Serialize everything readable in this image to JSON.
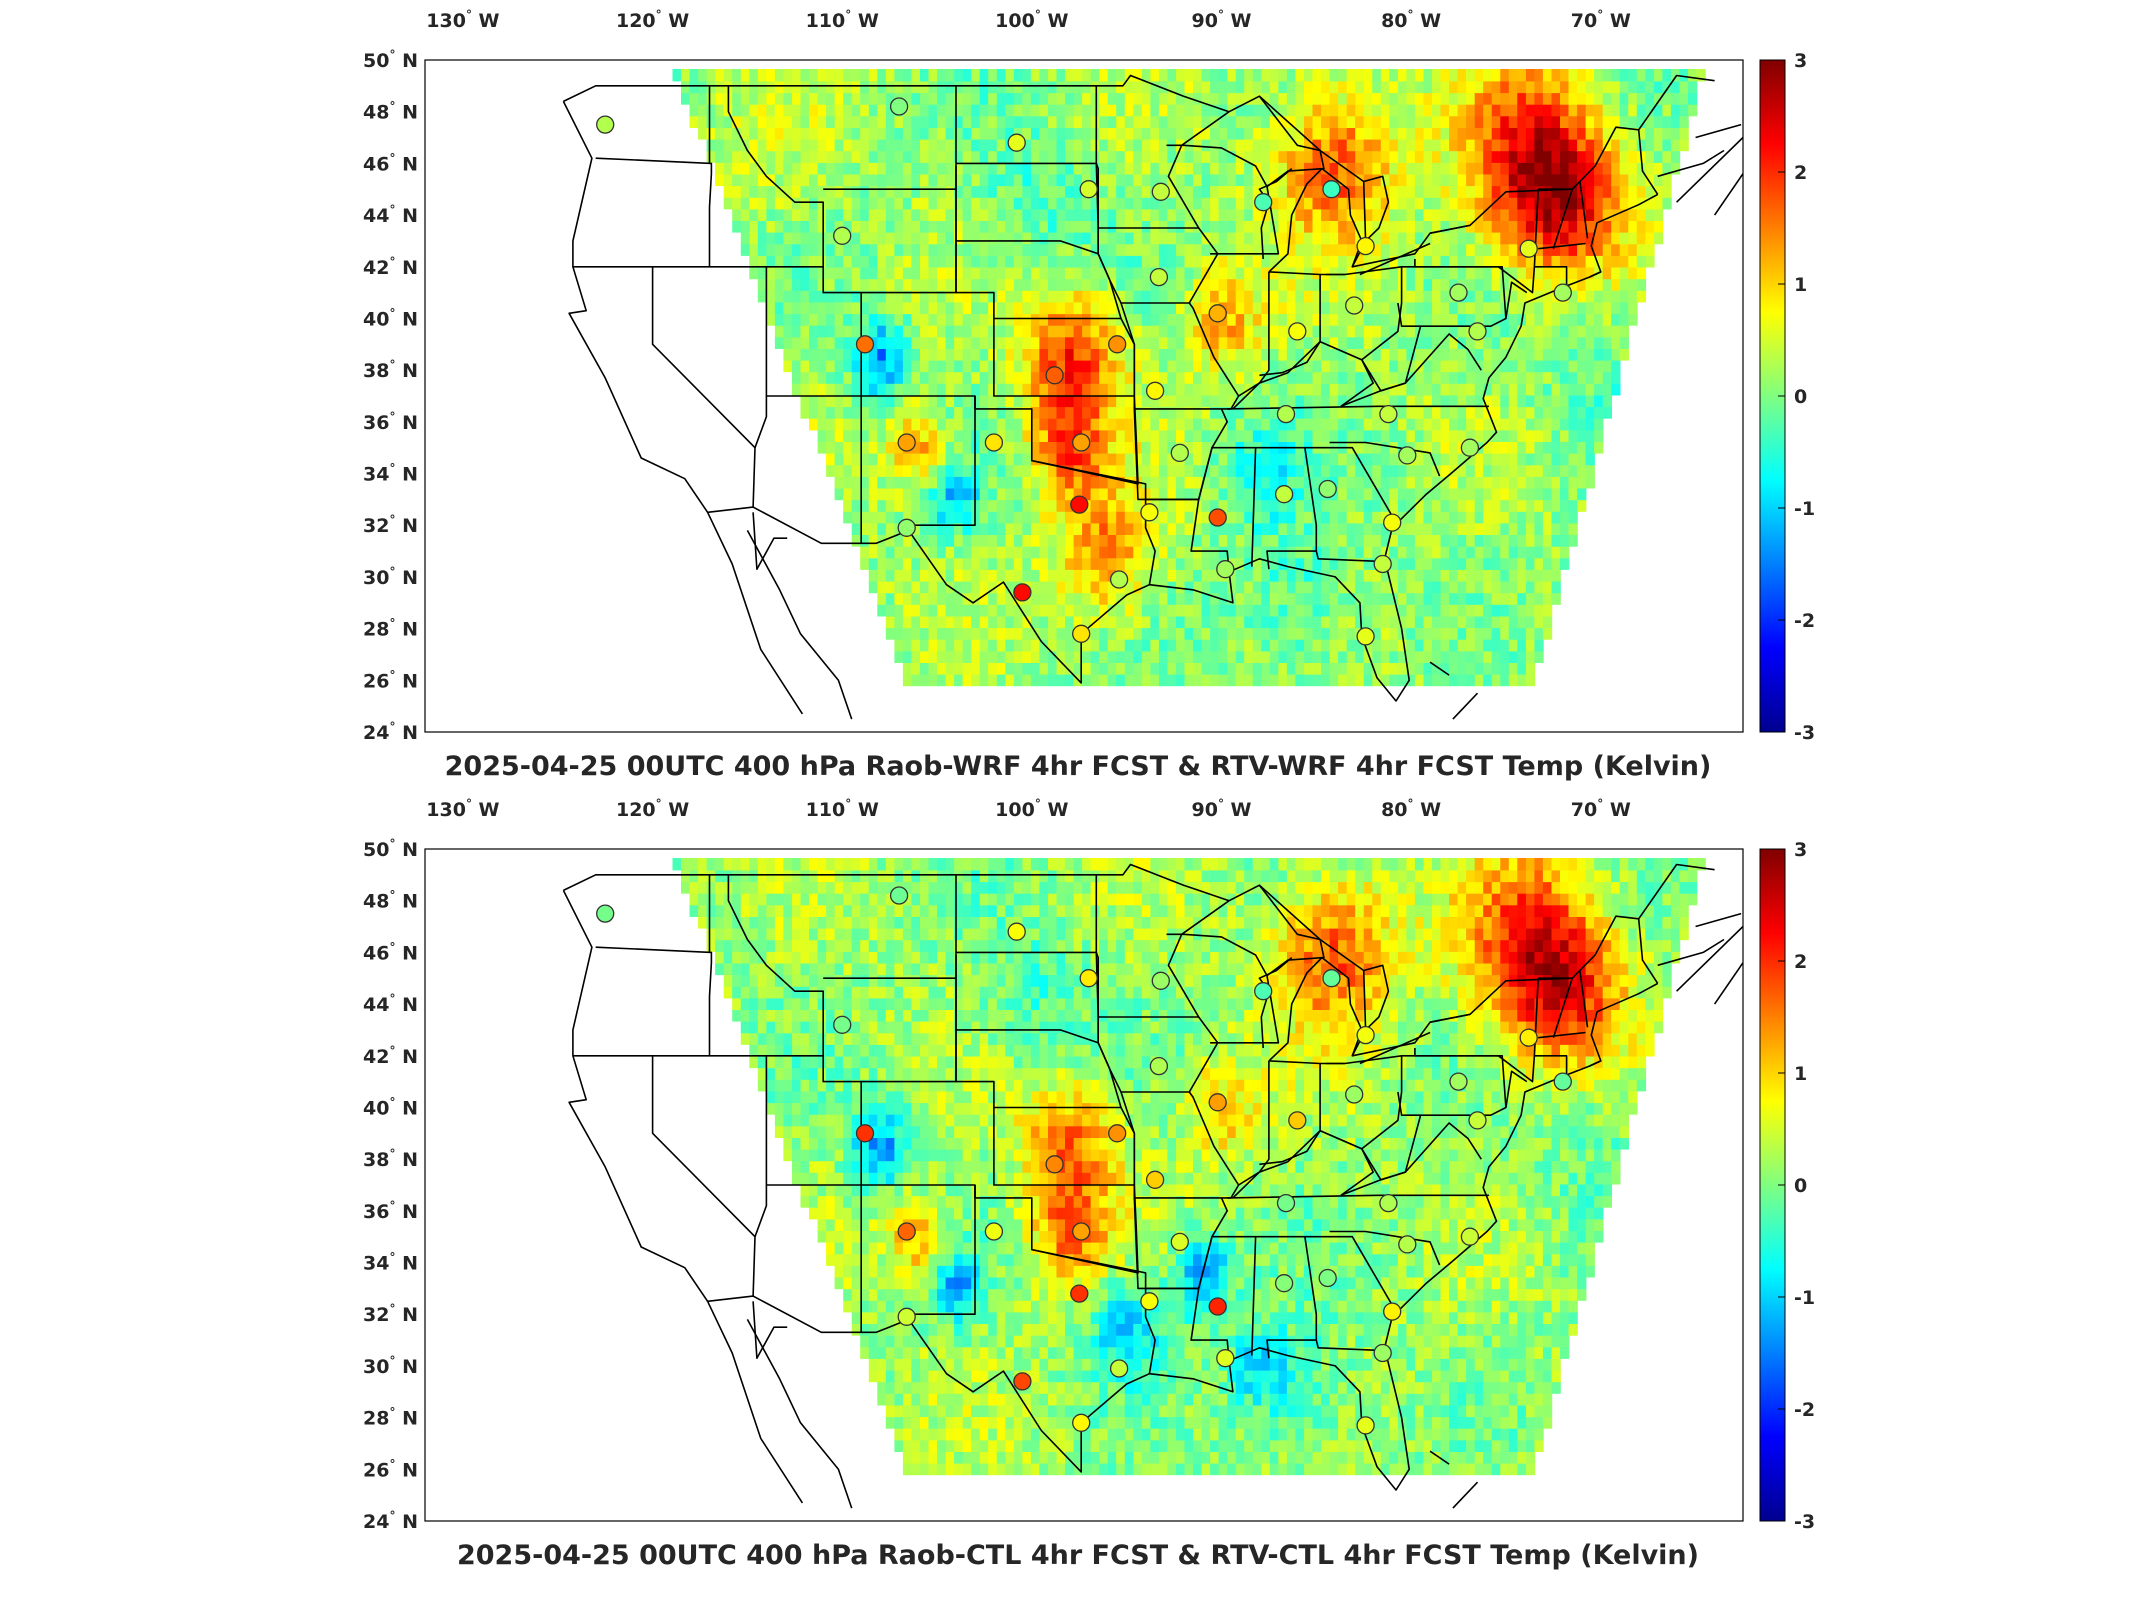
{
  "panels": [
    {
      "id": "wrf",
      "title": "2025-04-25 00UTC 400 hPa Raob-WRF 4hr FCST & RTV-WRF 4hr FCST Temp (Kelvin)",
      "seed": 7
    },
    {
      "id": "ctl",
      "title": "2025-04-25 00UTC 400 hPa Raob-CTL 4hr FCST & RTV-CTL 4hr FCST Temp (Kelvin)",
      "seed": 19
    }
  ],
  "lon_ticks": [
    {
      "deg": "130",
      "dir": "W",
      "value": -130
    },
    {
      "deg": "120",
      "dir": "W",
      "value": -120
    },
    {
      "deg": "110",
      "dir": "W",
      "value": -110
    },
    {
      "deg": "100",
      "dir": "W",
      "value": -100
    },
    {
      "deg": "90",
      "dir": "W",
      "value": -90
    },
    {
      "deg": "80",
      "dir": "W",
      "value": -80
    },
    {
      "deg": "70",
      "dir": "W",
      "value": -70
    }
  ],
  "lat_ticks": [
    {
      "deg": "50",
      "dir": "N",
      "value": 50
    },
    {
      "deg": "48",
      "dir": "N",
      "value": 48
    },
    {
      "deg": "46",
      "dir": "N",
      "value": 46
    },
    {
      "deg": "44",
      "dir": "N",
      "value": 44
    },
    {
      "deg": "42",
      "dir": "N",
      "value": 42
    },
    {
      "deg": "40",
      "dir": "N",
      "value": 40
    },
    {
      "deg": "38",
      "dir": "N",
      "value": 38
    },
    {
      "deg": "36",
      "dir": "N",
      "value": 36
    },
    {
      "deg": "34",
      "dir": "N",
      "value": 34
    },
    {
      "deg": "32",
      "dir": "N",
      "value": 32
    },
    {
      "deg": "30",
      "dir": "N",
      "value": 30
    },
    {
      "deg": "28",
      "dir": "N",
      "value": 28
    },
    {
      "deg": "26",
      "dir": "N",
      "value": 26
    },
    {
      "deg": "24",
      "dir": "N",
      "value": 24
    }
  ],
  "colorbar": {
    "ticks": [
      "3",
      "2",
      "1",
      "0",
      "-1",
      "-2",
      "-3"
    ],
    "min": -3,
    "max": 3,
    "colormap": "jet"
  },
  "colors": {
    "dark_red": "#800000",
    "red": "#ff0000",
    "orange": "#ff8000",
    "yellow": "#ffff00",
    "cyan": "#00ffff",
    "blue": "#0000ff",
    "dark_blue": "#000080"
  }
}
